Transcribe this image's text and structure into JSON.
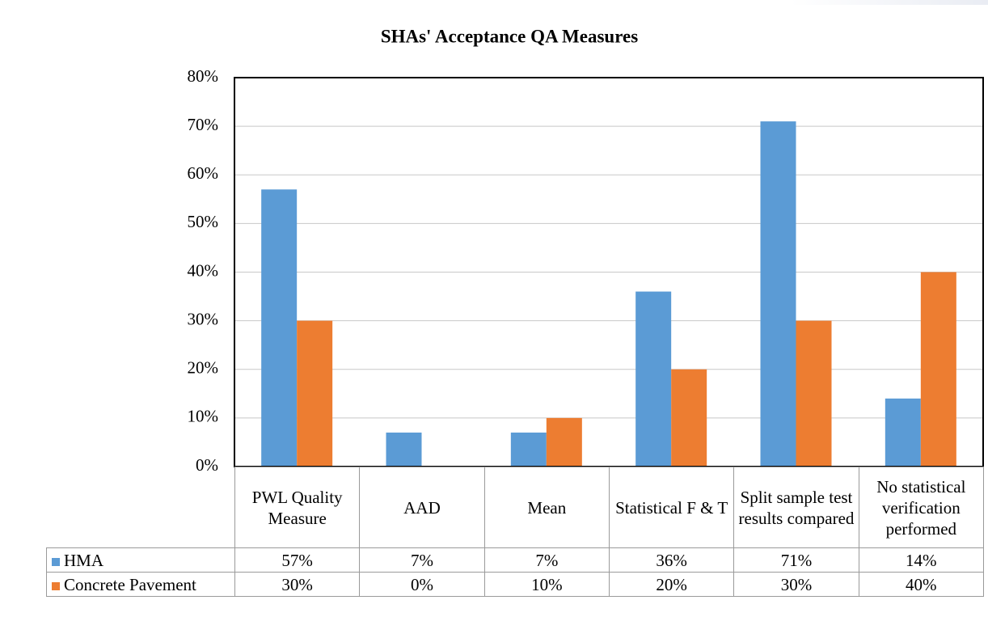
{
  "chart_data": {
    "type": "bar",
    "title": "SHAs' Acceptance QA Measures",
    "categories": [
      "PWL Quality Measure",
      "AAD",
      "Mean",
      "Statistical F & T",
      "Split sample test results compared",
      "No statistical verification performed"
    ],
    "series": [
      {
        "name": "HMA",
        "color": "#5b9bd5",
        "values": [
          57,
          7,
          7,
          36,
          71,
          14
        ],
        "value_labels": [
          "57%",
          "7%",
          "7%",
          "36%",
          "71%",
          "14%"
        ]
      },
      {
        "name": "Concrete Pavement",
        "color": "#ed7d31",
        "values": [
          30,
          0,
          10,
          20,
          30,
          40
        ],
        "value_labels": [
          "30%",
          "0%",
          "10%",
          "20%",
          "30%",
          "40%"
        ]
      }
    ],
    "ylim": [
      0,
      80
    ],
    "yticks": [
      {
        "value": 0,
        "label": "0%"
      },
      {
        "value": 10,
        "label": "10%"
      },
      {
        "value": 20,
        "label": "20%"
      },
      {
        "value": 30,
        "label": "30%"
      },
      {
        "value": 40,
        "label": "40%"
      },
      {
        "value": 50,
        "label": "50%"
      },
      {
        "value": 60,
        "label": "60%"
      },
      {
        "value": 70,
        "label": "70%"
      },
      {
        "value": 80,
        "label": "80%"
      }
    ],
    "grid": true
  }
}
